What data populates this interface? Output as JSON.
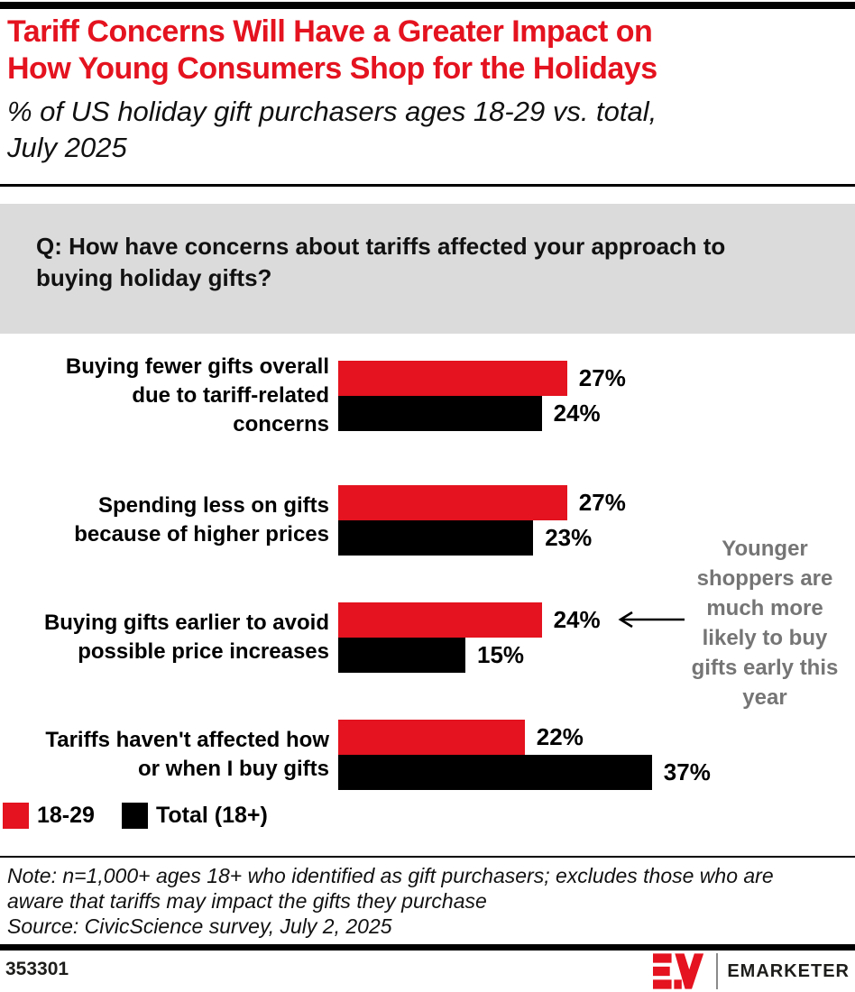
{
  "header": {
    "title_lines": [
      "Tariff Concerns Will Have a Greater Impact on",
      "How Young Consumers Shop for the Holidays"
    ],
    "subtitle_lines": [
      "% of US holiday gift purchasers ages 18-29 vs. total,",
      "July 2025"
    ]
  },
  "question": {
    "lines": [
      "Q: How have concerns about tariffs affected your approach to",
      "buying holiday gifts?"
    ]
  },
  "chart_data": {
    "type": "bar",
    "orientation": "horizontal",
    "title": "Tariff Concerns Will Have a Greater Impact on How Young Consumers Shop for the Holidays",
    "subtitle": "% of US holiday gift purchasers ages 18-29 vs. total, July 2025",
    "value_suffix": "%",
    "xlim": [
      0,
      40
    ],
    "grid": false,
    "legend_position": "bottom-left",
    "categories": [
      {
        "label": "Buying fewer gifts overall due to tariff-related concerns",
        "label_lines": [
          "Buying fewer gifts overall",
          "due to tariff-related",
          "concerns"
        ]
      },
      {
        "label": "Spending less on gifts because of higher prices",
        "label_lines": [
          "Spending less on gifts",
          "because of higher prices"
        ]
      },
      {
        "label": "Buying gifts earlier to avoid possible price increases",
        "label_lines": [
          "Buying gifts earlier to avoid",
          "possible price increases"
        ]
      },
      {
        "label": "Tariffs haven't affected how or when I buy gifts",
        "label_lines": [
          "Tariffs haven't affected how",
          "or when I buy gifts"
        ]
      }
    ],
    "series": [
      {
        "name": "18-29",
        "key": "age-18-29",
        "color": "#E4131F",
        "values": [
          27,
          27,
          24,
          22
        ]
      },
      {
        "name": "Total (18+)",
        "key": "total-18-plus",
        "color": "#000000",
        "values": [
          24,
          23,
          15,
          37
        ]
      }
    ],
    "annotation": {
      "text": "Younger shoppers are much more likely to buy gifts early this year",
      "points_to": "Buying gifts earlier to avoid possible price increases — 18-29 bar (24%)"
    }
  },
  "footnote": {
    "note_lines": [
      "Note: n=1,000+ ages 18+ who identified as gift purchasers; excludes those who are",
      "aware that tariffs may impact the gifts they purchase"
    ],
    "source": "Source: CivicScience survey, July 2, 2025"
  },
  "footer": {
    "chart_id": "353301",
    "brand_name": "EMARKETER"
  },
  "colors": {
    "accent_red": "#E4131F",
    "question_box_gray": "#DBDBDB",
    "annotation_gray": "#757575"
  }
}
